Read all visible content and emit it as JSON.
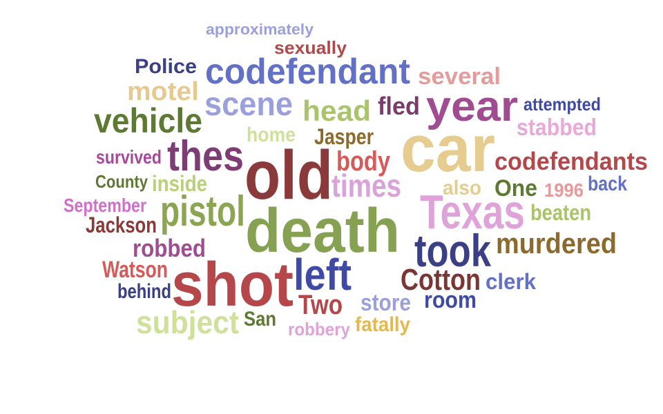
{
  "words": [
    {
      "text": "approximately",
      "color": "#9b9fdc"
    },
    {
      "text": "sexually",
      "color": "#b04a4a"
    },
    {
      "text": "Police",
      "color": "#3b3f85"
    },
    {
      "text": "codefendant",
      "color": "#6270c6"
    },
    {
      "text": "several",
      "color": "#e59b9b"
    },
    {
      "text": "motel",
      "color": "#e6c98f"
    },
    {
      "text": "scene",
      "color": "#9b9fdc"
    },
    {
      "text": "head",
      "color": "#a9c46a"
    },
    {
      "text": "fled",
      "color": "#7a3a6a"
    },
    {
      "text": "year",
      "color": "#a04c90"
    },
    {
      "text": "attempted",
      "color": "#3f4aa6"
    },
    {
      "text": "vehicle",
      "color": "#5d7a33"
    },
    {
      "text": "home",
      "color": "#cfe09a"
    },
    {
      "text": "Jasper",
      "color": "#8c6a2e"
    },
    {
      "text": "car",
      "color": "#e6cd8f"
    },
    {
      "text": "stabbed",
      "color": "#e9a9d8"
    },
    {
      "text": "thes",
      "color": "#7b3d73"
    },
    {
      "text": "survived",
      "color": "#a8489a"
    },
    {
      "text": "old",
      "color": "#8a3a3a"
    },
    {
      "text": "body",
      "color": "#d65a5a"
    },
    {
      "text": "codefendants",
      "color": "#b5474a"
    },
    {
      "text": "County",
      "color": "#5d7a33"
    },
    {
      "text": "inside",
      "color": "#b8d07a"
    },
    {
      "text": "times",
      "color": "#d9a3d9"
    },
    {
      "text": "also",
      "color": "#e6cd8f"
    },
    {
      "text": "One",
      "color": "#5d7a33"
    },
    {
      "text": "1996",
      "color": "#e59b9b"
    },
    {
      "text": "back",
      "color": "#6270c6"
    },
    {
      "text": "September",
      "color": "#d070c8"
    },
    {
      "text": "pistol",
      "color": "#8ca552"
    },
    {
      "text": "Texas",
      "color": "#dfa3d9"
    },
    {
      "text": "beaten",
      "color": "#a9c46a"
    },
    {
      "text": "Jackson",
      "color": "#8a3a3a"
    },
    {
      "text": "death",
      "color": "#86a152"
    },
    {
      "text": "took",
      "color": "#3b3f85"
    },
    {
      "text": "murdered",
      "color": "#8c6a2e"
    },
    {
      "text": "robbed",
      "color": "#a04c90"
    },
    {
      "text": "Watson",
      "color": "#d65a5a"
    },
    {
      "text": "shot",
      "color": "#b5474a"
    },
    {
      "text": "left",
      "color": "#3f4aa6"
    },
    {
      "text": "Cotton",
      "color": "#7a3535"
    },
    {
      "text": "clerk",
      "color": "#6270c6"
    },
    {
      "text": "behind",
      "color": "#3b3f85"
    },
    {
      "text": "Two",
      "color": "#b5474a"
    },
    {
      "text": "store",
      "color": "#9b9fdc"
    },
    {
      "text": "room",
      "color": "#3f4aa6"
    },
    {
      "text": "subject",
      "color": "#cfe09a"
    },
    {
      "text": "San",
      "color": "#5d7a33"
    },
    {
      "text": "robbery",
      "color": "#dfa3d9"
    },
    {
      "text": "fatally",
      "color": "#e6b84a"
    }
  ]
}
